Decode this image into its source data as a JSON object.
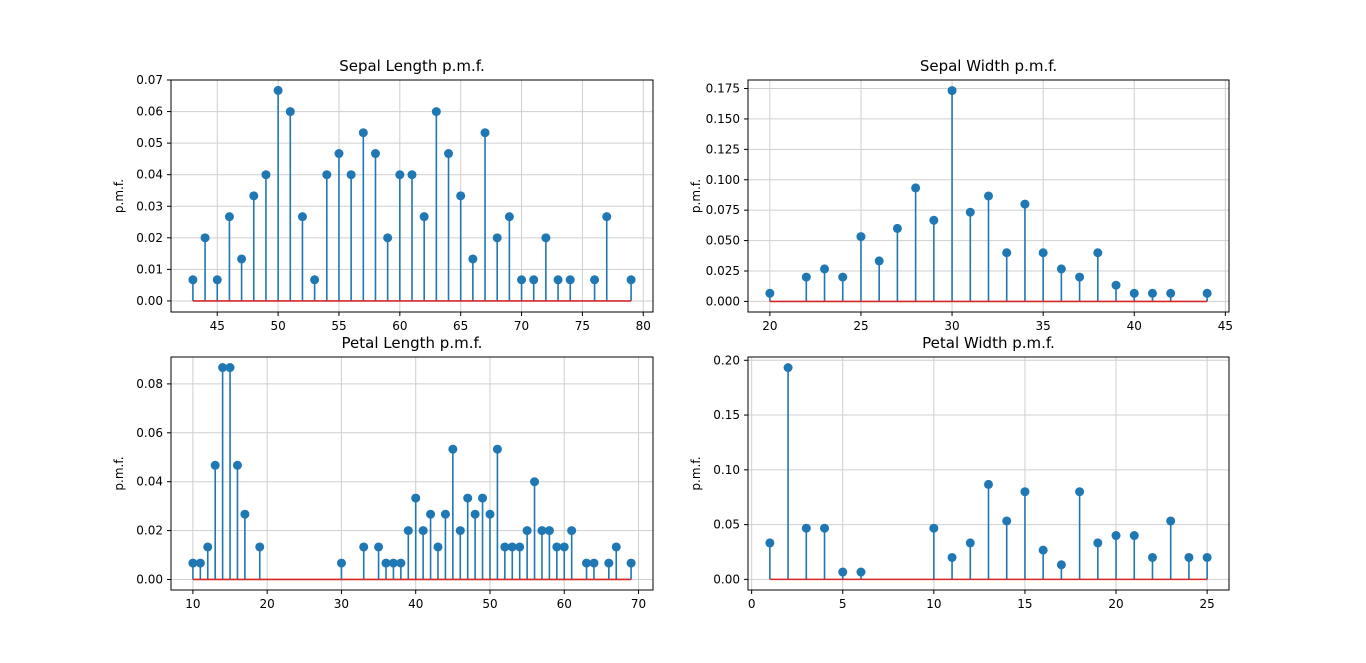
{
  "colors": {
    "stem": "#1f77b4",
    "baseline": "#d62728",
    "grid": "#cfcfcf"
  },
  "chart_data": [
    {
      "type": "stem",
      "title": "Sepal Length p.m.f.",
      "ylabel": "p.m.f.",
      "xlim": [
        41.2,
        80.8
      ],
      "ylim": [
        -0.0035,
        0.07
      ],
      "xticks": [
        45,
        50,
        55,
        60,
        65,
        70,
        75,
        80
      ],
      "yticks": [
        0.0,
        0.01,
        0.02,
        0.03,
        0.04,
        0.05,
        0.06,
        0.07
      ],
      "ytick_labels": [
        "0.00",
        "0.01",
        "0.02",
        "0.03",
        "0.04",
        "0.05",
        "0.06",
        "0.07"
      ],
      "baseline": [
        43,
        79
      ],
      "x": [
        43,
        44,
        45,
        46,
        47,
        48,
        49,
        50,
        51,
        52,
        53,
        54,
        55,
        56,
        57,
        58,
        59,
        60,
        61,
        62,
        63,
        64,
        65,
        66,
        67,
        68,
        69,
        70,
        71,
        72,
        73,
        74,
        76,
        77,
        79
      ],
      "y": [
        0.0067,
        0.02,
        0.0067,
        0.0267,
        0.0133,
        0.0333,
        0.04,
        0.0667,
        0.06,
        0.0267,
        0.0067,
        0.04,
        0.0467,
        0.04,
        0.0533,
        0.0467,
        0.02,
        0.04,
        0.04,
        0.0267,
        0.06,
        0.0467,
        0.0333,
        0.0133,
        0.0533,
        0.02,
        0.0267,
        0.0067,
        0.0067,
        0.02,
        0.0067,
        0.0067,
        0.0067,
        0.0267,
        0.0067
      ]
    },
    {
      "type": "stem",
      "title": "Sepal Width p.m.f.",
      "ylabel": "p.m.f.",
      "xlim": [
        18.8,
        45.2
      ],
      "ylim": [
        -0.0087,
        0.182
      ],
      "xticks": [
        20,
        25,
        30,
        35,
        40,
        45
      ],
      "yticks": [
        0,
        0.025,
        0.05,
        0.075,
        0.1,
        0.125,
        0.15,
        0.175
      ],
      "ytick_labels": [
        "0.000",
        "0.025",
        "0.050",
        "0.075",
        "0.100",
        "0.125",
        "0.150",
        "0.175"
      ],
      "baseline": [
        20,
        44
      ],
      "x": [
        20,
        22,
        23,
        24,
        25,
        26,
        27,
        28,
        29,
        30,
        31,
        32,
        33,
        34,
        35,
        36,
        37,
        38,
        39,
        40,
        41,
        42,
        44
      ],
      "y": [
        0.0067,
        0.02,
        0.0267,
        0.02,
        0.0533,
        0.0333,
        0.06,
        0.0933,
        0.0667,
        0.1733,
        0.0733,
        0.0867,
        0.04,
        0.08,
        0.04,
        0.0267,
        0.02,
        0.04,
        0.0133,
        0.0067,
        0.0067,
        0.0067,
        0.0067
      ]
    },
    {
      "type": "stem",
      "title": "Petal Length p.m.f.",
      "ylabel": "p.m.f.",
      "xlim": [
        7.05,
        71.95
      ],
      "ylim": [
        -0.0043,
        0.091
      ],
      "xticks": [
        10,
        20,
        30,
        40,
        50,
        60,
        70
      ],
      "yticks": [
        0,
        0.02,
        0.04,
        0.06,
        0.08
      ],
      "ytick_labels": [
        "0.00",
        "0.02",
        "0.04",
        "0.06",
        "0.08"
      ],
      "baseline": [
        10,
        69
      ],
      "x": [
        10,
        11,
        12,
        13,
        14,
        15,
        16,
        17,
        19,
        30,
        33,
        35,
        36,
        37,
        38,
        39,
        40,
        41,
        42,
        43,
        44,
        45,
        46,
        47,
        48,
        49,
        50,
        51,
        52,
        53,
        54,
        55,
        56,
        57,
        58,
        59,
        60,
        61,
        63,
        64,
        66,
        67,
        69
      ],
      "y": [
        0.0067,
        0.0067,
        0.0133,
        0.0467,
        0.0867,
        0.0867,
        0.0467,
        0.0267,
        0.0133,
        0.0067,
        0.0133,
        0.0133,
        0.0067,
        0.0067,
        0.0067,
        0.02,
        0.0333,
        0.02,
        0.0267,
        0.0133,
        0.0267,
        0.0533,
        0.02,
        0.0333,
        0.0267,
        0.0333,
        0.0267,
        0.0533,
        0.0133,
        0.0133,
        0.0133,
        0.02,
        0.04,
        0.02,
        0.02,
        0.0133,
        0.0133,
        0.02,
        0.0067,
        0.0067,
        0.0067,
        0.0133,
        0.0067
      ]
    },
    {
      "type": "stem",
      "title": "Petal Width p.m.f.",
      "ylabel": "p.m.f.",
      "xlim": [
        -0.2,
        26.2
      ],
      "ylim": [
        -0.0097,
        0.203
      ],
      "xticks": [
        0,
        5,
        10,
        15,
        20,
        25
      ],
      "yticks": [
        0,
        0.05,
        0.1,
        0.15,
        0.2
      ],
      "ytick_labels": [
        "0.00",
        "0.05",
        "0.10",
        "0.15",
        "0.20"
      ],
      "baseline": [
        1,
        25
      ],
      "x": [
        1,
        2,
        3,
        4,
        5,
        6,
        10,
        11,
        12,
        13,
        14,
        15,
        16,
        17,
        18,
        19,
        20,
        21,
        22,
        23,
        24,
        25
      ],
      "y": [
        0.0333,
        0.1933,
        0.0467,
        0.0467,
        0.0067,
        0.0067,
        0.0467,
        0.02,
        0.0333,
        0.0867,
        0.0533,
        0.08,
        0.0267,
        0.0133,
        0.08,
        0.0333,
        0.04,
        0.04,
        0.02,
        0.0533,
        0.02,
        0.02
      ]
    }
  ]
}
